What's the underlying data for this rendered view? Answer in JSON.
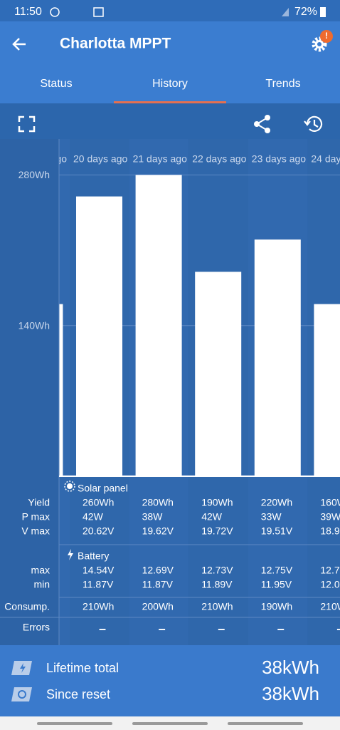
{
  "status_bar": {
    "time": "11:50",
    "battery": "72%"
  },
  "header": {
    "title": "Charlotta MPPT",
    "badge": "!"
  },
  "tabs": [
    "Status",
    "History",
    "Trends"
  ],
  "chart_data": {
    "type": "bar",
    "categories": [
      "go",
      "20 days ago",
      "21 days ago",
      "22 days ago",
      "23 days ago",
      "24 day"
    ],
    "values": [
      160,
      260,
      280,
      190,
      220,
      160
    ],
    "color": "#ffffff",
    "ylim": [
      0,
      320
    ],
    "yticks": [
      {
        "value": 140,
        "label": "140Wh"
      },
      {
        "value": 280,
        "label": "280Wh"
      }
    ],
    "grid": true
  },
  "table": {
    "solar_title": "Solar panel",
    "solar_labels": [
      "Yield",
      "P max",
      "V max"
    ],
    "battery_title": "Battery",
    "battery_labels": [
      "max",
      "min"
    ],
    "consumption_label": "Consump.",
    "errors_label": "Errors",
    "columns": [
      [
        "260Wh",
        "42W",
        "20.62V",
        "14.54V",
        "11.87V",
        "210Wh",
        "–"
      ],
      [
        "280Wh",
        "38W",
        "19.62V",
        "12.69V",
        "11.87V",
        "200Wh",
        "–"
      ],
      [
        "190Wh",
        "42W",
        "19.72V",
        "12.73V",
        "11.89V",
        "210Wh",
        "–"
      ],
      [
        "220Wh",
        "33W",
        "19.51V",
        "12.75V",
        "11.95V",
        "190Wh",
        "–"
      ],
      [
        "160W",
        "39W",
        "18.9",
        "12.7",
        "12.0",
        "210W",
        "–"
      ]
    ]
  },
  "footer": [
    {
      "label": "Lifetime total",
      "value": "38kWh"
    },
    {
      "label": "Since reset",
      "value": "38kWh"
    }
  ]
}
